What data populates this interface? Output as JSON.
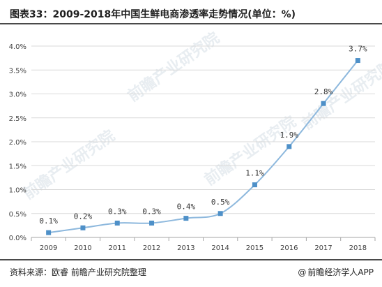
{
  "header": {
    "title": "图表33：2009-2018年中国生鲜电商渗透率走势情况(单位：%)"
  },
  "footer": {
    "source": "资料来源：欧睿 前瞻产业研究院整理",
    "at_symbol": "@",
    "brand": "前瞻经济学人APP"
  },
  "watermark": {
    "text": "前瞻产业研究院",
    "color": "#e8edf1"
  },
  "colors": {
    "line": "#8db8dd",
    "marker": "#4e90c8",
    "grid": "#d9d9d9",
    "axis": "#a6a6a6",
    "rule": "#4a4a4a"
  },
  "chart_data": {
    "type": "line",
    "title": "",
    "xlabel": "",
    "ylabel": "",
    "categories": [
      "2009",
      "2010",
      "2011",
      "2012",
      "2013",
      "2014",
      "2015",
      "2016",
      "2017",
      "2018"
    ],
    "series": [
      {
        "values": [
          0.1,
          0.2,
          0.3,
          0.3,
          0.4,
          0.5,
          1.1,
          1.9,
          2.8,
          3.7
        ],
        "data_labels": [
          "0.1%",
          "0.2%",
          "0.3%",
          "0.3%",
          "0.4%",
          "0.5%",
          "1.1%",
          "1.9%",
          "2.8%",
          "3.7%"
        ]
      }
    ],
    "ylim": [
      0,
      4.0
    ],
    "y_ticks": [
      0,
      0.5,
      1.0,
      1.5,
      2.0,
      2.5,
      3.0,
      3.5,
      4.0
    ],
    "y_tick_labels": [
      "0.0%",
      "0.5%",
      "1.0%",
      "1.5%",
      "2.0%",
      "2.5%",
      "3.0%",
      "3.5%",
      "4.0%"
    ],
    "grid": true,
    "smooth": true,
    "marker": "square",
    "legend": "none"
  }
}
